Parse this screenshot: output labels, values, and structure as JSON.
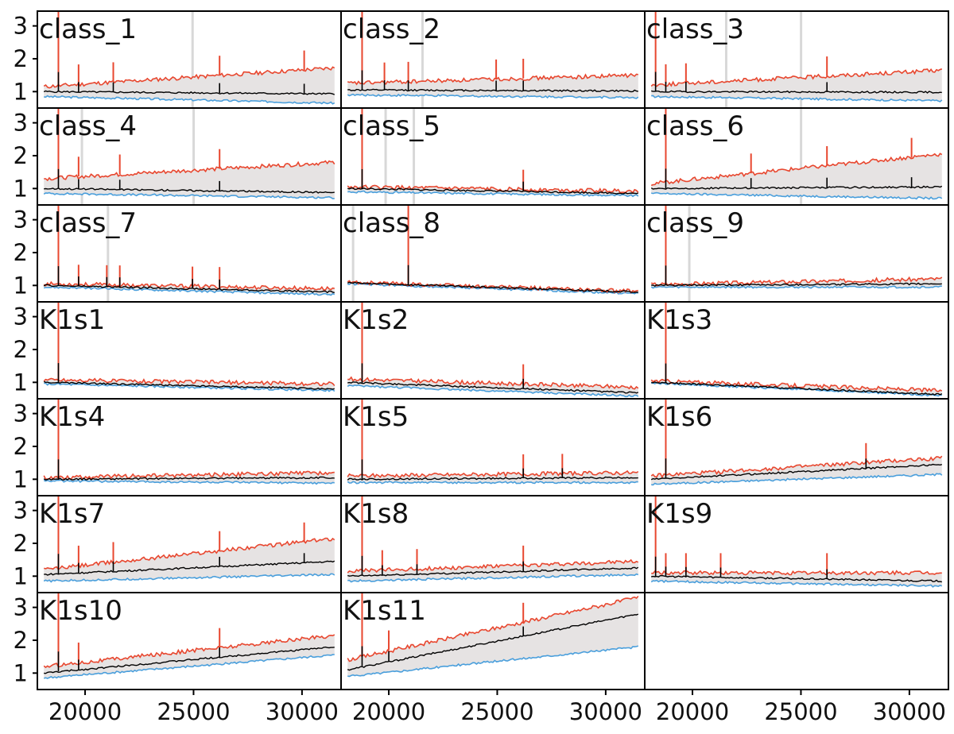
{
  "colors": {
    "upper": "#e8472f",
    "median": "#000000",
    "lower": "#4a9fdc",
    "band": "#e6e3e3",
    "gap": "#d8d8d8",
    "frame": "#000000"
  },
  "chart_data": {
    "type": "line",
    "layout": {
      "rows": 7,
      "cols": 3,
      "shared_x": true,
      "shared_y": true
    },
    "xlim": [
      17800,
      31800
    ],
    "ylim": [
      0.5,
      3.45
    ],
    "xticks": [
      20000,
      25000,
      30000
    ],
    "xtick_labels": [
      "20000",
      "25000",
      "30000"
    ],
    "yticks": [
      1,
      2,
      3
    ],
    "ytick_labels": [
      "1",
      "2",
      "3"
    ],
    "panels": [
      {
        "label": "class_1",
        "lower": {
          "start": 0.85,
          "end": 0.65
        },
        "median": {
          "start": 1.0,
          "end": 0.93
        },
        "upper": {
          "start": 1.15,
          "end": 1.72
        },
        "spike_at": [
          18770,
          19700,
          21300,
          26200,
          30100
        ],
        "gaps": [
          [
            24900,
            25000
          ]
        ]
      },
      {
        "label": "class_2",
        "lower": {
          "start": 0.9,
          "end": 0.82
        },
        "median": {
          "start": 1.05,
          "end": 1.02
        },
        "upper": {
          "start": 1.25,
          "end": 1.5
        },
        "spike_at": [
          18770,
          19800,
          20900,
          24950,
          26200
        ],
        "gaps": [
          [
            21500,
            21550
          ]
        ]
      },
      {
        "label": "class_3",
        "lower": {
          "start": 0.85,
          "end": 0.72
        },
        "median": {
          "start": 1.0,
          "end": 0.98
        },
        "upper": {
          "start": 1.2,
          "end": 1.65
        },
        "spike_at": [
          18300,
          18770,
          19700,
          26200
        ],
        "gaps": [
          [
            21500,
            21550
          ],
          [
            24950,
            25000
          ]
        ]
      },
      {
        "label": "class_4",
        "lower": {
          "start": 0.85,
          "end": 0.72
        },
        "median": {
          "start": 1.0,
          "end": 0.88
        },
        "upper": {
          "start": 1.3,
          "end": 1.8
        },
        "spike_at": [
          18770,
          19700,
          21600,
          26200
        ],
        "gaps": [
          [
            19800,
            19850
          ],
          [
            24950,
            25000
          ]
        ]
      },
      {
        "label": "class_5",
        "lower": {
          "start": 0.9,
          "end": 0.78
        },
        "median": {
          "start": 1.0,
          "end": 0.85
        },
        "upper": {
          "start": 1.05,
          "end": 0.92
        },
        "spike_at": [
          18770,
          26200
        ],
        "gaps": [
          [
            19800,
            19850
          ],
          [
            21100,
            21150
          ]
        ]
      },
      {
        "label": "class_6",
        "lower": {
          "start": 0.85,
          "end": 0.7
        },
        "median": {
          "start": 1.0,
          "end": 1.05
        },
        "upper": {
          "start": 1.15,
          "end": 2.05
        },
        "spike_at": [
          18770,
          22700,
          26200,
          30100
        ],
        "gaps": [
          [
            24950,
            25000
          ]
        ]
      },
      {
        "label": "class_7",
        "lower": {
          "start": 0.95,
          "end": 0.72
        },
        "median": {
          "start": 1.0,
          "end": 0.8
        },
        "upper": {
          "start": 1.05,
          "end": 0.9
        },
        "spike_at": [
          18770,
          19700,
          21000,
          21600,
          24950,
          26200
        ],
        "gaps": [
          [
            21000,
            21050
          ]
        ]
      },
      {
        "label": "class_8",
        "lower": {
          "start": 1.05,
          "end": 0.75
        },
        "median": {
          "start": 1.08,
          "end": 0.8
        },
        "upper": {
          "start": 1.1,
          "end": 0.82
        },
        "spike_at": [
          20900
        ],
        "gaps": [
          [
            18300,
            18350
          ]
        ]
      },
      {
        "label": "class_9",
        "lower": {
          "start": 0.95,
          "end": 0.95
        },
        "median": {
          "start": 1.0,
          "end": 1.05
        },
        "upper": {
          "start": 1.03,
          "end": 1.2
        },
        "spike_at": [
          18770
        ],
        "gaps": [
          [
            19800,
            19850
          ]
        ]
      },
      {
        "label": "K1s1",
        "lower": {
          "start": 0.95,
          "end": 0.75
        },
        "median": {
          "start": 1.0,
          "end": 0.8
        },
        "upper": {
          "start": 1.08,
          "end": 0.95
        },
        "spike_at": [
          18770
        ],
        "gaps": []
      },
      {
        "label": "K1s2",
        "lower": {
          "start": 0.9,
          "end": 0.58
        },
        "median": {
          "start": 1.0,
          "end": 0.68
        },
        "upper": {
          "start": 1.1,
          "end": 0.85
        },
        "spike_at": [
          18770,
          26200
        ],
        "gaps": []
      },
      {
        "label": "K1s3",
        "lower": {
          "start": 0.98,
          "end": 0.6
        },
        "median": {
          "start": 1.0,
          "end": 0.63
        },
        "upper": {
          "start": 1.05,
          "end": 0.75
        },
        "spike_at": [
          18770
        ],
        "gaps": []
      },
      {
        "label": "K1s4",
        "lower": {
          "start": 0.95,
          "end": 0.88
        },
        "median": {
          "start": 1.0,
          "end": 1.05
        },
        "upper": {
          "start": 1.05,
          "end": 1.2
        },
        "spike_at": [
          18770
        ],
        "gaps": []
      },
      {
        "label": "K1s5",
        "lower": {
          "start": 0.9,
          "end": 0.9
        },
        "median": {
          "start": 1.0,
          "end": 1.05
        },
        "upper": {
          "start": 1.1,
          "end": 1.2
        },
        "spike_at": [
          18770,
          26200,
          28000
        ],
        "gaps": []
      },
      {
        "label": "K1s6",
        "lower": {
          "start": 0.85,
          "end": 1.15
        },
        "median": {
          "start": 1.0,
          "end": 1.45
        },
        "upper": {
          "start": 1.1,
          "end": 1.65
        },
        "spike_at": [
          18770,
          28000
        ],
        "gaps": []
      },
      {
        "label": "K1s7",
        "lower": {
          "start": 0.85,
          "end": 1.05
        },
        "median": {
          "start": 1.05,
          "end": 1.45
        },
        "upper": {
          "start": 1.2,
          "end": 2.15
        },
        "spike_at": [
          18770,
          19700,
          21300,
          26200,
          30100
        ],
        "gaps": []
      },
      {
        "label": "K1s8",
        "lower": {
          "start": 0.85,
          "end": 1.05
        },
        "median": {
          "start": 1.0,
          "end": 1.25
        },
        "upper": {
          "start": 1.15,
          "end": 1.45
        },
        "spike_at": [
          18770,
          19700,
          21300,
          26200
        ],
        "gaps": []
      },
      {
        "label": "K1s9",
        "lower": {
          "start": 0.85,
          "end": 0.7
        },
        "median": {
          "start": 1.0,
          "end": 0.85
        },
        "upper": {
          "start": 1.1,
          "end": 1.1
        },
        "spike_at": [
          18300,
          18770,
          19700,
          21300,
          26200
        ],
        "gaps": []
      },
      {
        "label": "K1s10",
        "lower": {
          "start": 0.85,
          "end": 1.55
        },
        "median": {
          "start": 1.0,
          "end": 1.8
        },
        "upper": {
          "start": 1.2,
          "end": 2.15
        },
        "spike_at": [
          18770,
          19700,
          26200
        ],
        "gaps": []
      },
      {
        "label": "K1s11",
        "lower": {
          "start": 0.9,
          "end": 1.8
        },
        "median": {
          "start": 1.1,
          "end": 2.8
        },
        "upper": {
          "start": 1.4,
          "end": 3.3
        },
        "spike_at": [
          18770,
          20000,
          26200
        ],
        "gaps": []
      }
    ]
  }
}
